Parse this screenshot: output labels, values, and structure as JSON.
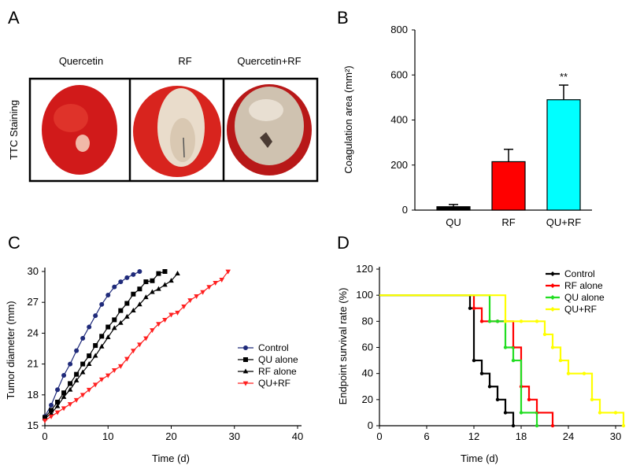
{
  "figure": {
    "panel_a_label": "A",
    "panel_b_label": "B",
    "panel_c_label": "C",
    "panel_d_label": "D"
  },
  "panel_a": {
    "row_label": "TTC Staining",
    "columns": [
      "Quercetin",
      "RF",
      "Quercetin+RF"
    ],
    "colors": {
      "tissue_red": "#d81e1e",
      "coagulated": "#e8d8c8",
      "frame": "#000000"
    }
  },
  "chart_data": [
    {
      "type": "bar",
      "panel": "B",
      "categories": [
        "QU",
        "RF",
        "QU+RF"
      ],
      "values": [
        15,
        215,
        490
      ],
      "errors": [
        10,
        55,
        65
      ],
      "colors": [
        "#000000",
        "#ff0000",
        "#00ffff"
      ],
      "ylabel": "Coagulation area (mm²)",
      "ylim": [
        0,
        800
      ],
      "yticks": [
        0,
        200,
        400,
        600,
        800
      ],
      "annotations": [
        {
          "category": "QU+RF",
          "text": "**"
        }
      ],
      "grid": false
    },
    {
      "type": "line",
      "panel": "C",
      "xlabel": "Time (d)",
      "ylabel": "Tumor diameter (mm)",
      "xlim": [
        0,
        40
      ],
      "ylim": [
        15,
        30
      ],
      "xticks": [
        0,
        10,
        20,
        30,
        40
      ],
      "yticks": [
        15,
        18,
        21,
        24,
        27,
        30
      ],
      "legend": "right",
      "grid": false,
      "series": [
        {
          "name": "Control",
          "color": "#1f2a7a",
          "marker": "circle",
          "x": [
            0,
            1,
            2,
            3,
            4,
            5,
            6,
            7,
            8,
            9,
            10,
            11,
            12,
            13,
            14,
            15
          ],
          "y": [
            15.9,
            17.0,
            18.5,
            19.9,
            21.0,
            22.3,
            23.5,
            24.6,
            25.7,
            26.8,
            27.7,
            28.5,
            29.0,
            29.4,
            29.7,
            30.0
          ]
        },
        {
          "name": "QU alone",
          "color": "#000000",
          "marker": "square",
          "x": [
            0,
            1,
            2,
            3,
            4,
            5,
            6,
            7,
            8,
            9,
            10,
            11,
            12,
            13,
            14,
            15,
            16,
            17,
            18,
            19
          ],
          "y": [
            15.8,
            16.5,
            17.3,
            18.2,
            19.1,
            20.0,
            21.0,
            21.8,
            22.8,
            23.7,
            24.6,
            25.3,
            26.2,
            26.9,
            27.8,
            28.3,
            29.0,
            29.1,
            29.8,
            30.0
          ]
        },
        {
          "name": "RF alone",
          "color": "#000000",
          "marker": "triangle",
          "x": [
            0,
            1,
            2,
            3,
            4,
            5,
            6,
            7,
            8,
            9,
            10,
            11,
            12,
            13,
            14,
            15,
            16,
            17,
            18,
            19,
            20,
            21
          ],
          "y": [
            15.7,
            16.2,
            16.9,
            17.8,
            18.5,
            19.4,
            20.2,
            21.0,
            21.8,
            22.7,
            23.6,
            24.5,
            25.0,
            25.6,
            26.2,
            26.8,
            27.5,
            28.0,
            28.3,
            28.7,
            29.1,
            29.8
          ]
        },
        {
          "name": "QU+RF",
          "color": "#ff2020",
          "marker": "triangle-down",
          "x": [
            0,
            1,
            2,
            3,
            4,
            5,
            6,
            7,
            8,
            9,
            10,
            11,
            12,
            13,
            14,
            15,
            16,
            17,
            18,
            19,
            20,
            21,
            22,
            23,
            24,
            25,
            26,
            27,
            28,
            29
          ],
          "y": [
            15.5,
            15.9,
            16.3,
            16.7,
            17.1,
            17.5,
            18.0,
            18.5,
            19.0,
            19.5,
            19.9,
            20.4,
            20.8,
            21.5,
            22.3,
            22.9,
            23.5,
            24.3,
            24.9,
            25.3,
            25.8,
            26.0,
            26.6,
            27.2,
            27.6,
            28.0,
            28.5,
            28.9,
            29.2,
            30.0
          ]
        }
      ]
    },
    {
      "type": "line",
      "panel": "D",
      "xlabel": "Time (d)",
      "ylabel": "Endpoint survival rate (%)",
      "xlim": [
        0,
        31
      ],
      "ylim": [
        0,
        120
      ],
      "xticks": [
        0,
        6,
        12,
        18,
        24,
        30
      ],
      "yticks": [
        0,
        20,
        40,
        60,
        80,
        100,
        120
      ],
      "legend": "top-right",
      "grid": false,
      "series": [
        {
          "name": "Control",
          "color": "#000000",
          "x": [
            0,
            11.5,
            12,
            13,
            14,
            15,
            16,
            17
          ],
          "y": [
            100,
            90,
            50,
            40,
            30,
            20,
            10,
            0
          ]
        },
        {
          "name": "RF alone",
          "color": "#ff0000",
          "x": [
            0,
            12,
            13,
            15,
            17,
            18,
            19,
            20,
            22
          ],
          "y": [
            100,
            90,
            80,
            80,
            60,
            30,
            20,
            10,
            0
          ]
        },
        {
          "name": "QU alone",
          "color": "#22dd22",
          "x": [
            0,
            14,
            15,
            16,
            17,
            18,
            20
          ],
          "y": [
            100,
            80,
            80,
            60,
            50,
            10,
            0
          ]
        },
        {
          "name": "QU+RF",
          "color": "#ffff00",
          "x": [
            0,
            16,
            18,
            20,
            21,
            22,
            23,
            24,
            26,
            27,
            28,
            30,
            31
          ],
          "y": [
            100,
            80,
            80,
            80,
            70,
            60,
            50,
            40,
            40,
            20,
            10,
            10,
            0
          ]
        }
      ]
    }
  ]
}
